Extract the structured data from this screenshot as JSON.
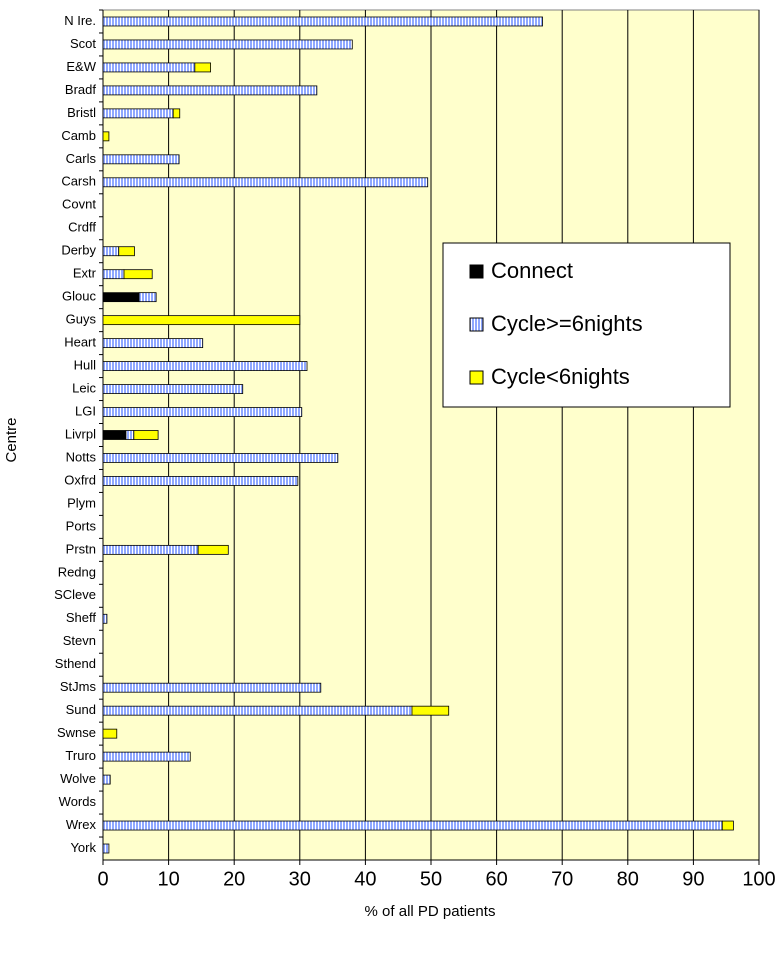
{
  "chart_data": {
    "type": "bar",
    "orientation": "horizontal",
    "stacked": true,
    "x_label": "% of  all PD patients",
    "y_label": "Centre",
    "categories": [
      "N Ire.",
      "Scot",
      "E&W",
      "Bradf",
      "Bristl",
      "Camb",
      "Carls",
      "Carsh",
      "Covnt",
      "Crdff",
      "Derby",
      "Extr",
      "Glouc",
      "Guys",
      "Heart",
      "Hull",
      "Leic",
      "LGI",
      "Livrpl",
      "Notts",
      "Oxfrd",
      "Plym",
      "Ports",
      "Prstn",
      "Redng",
      "SCleve",
      "Sheff",
      "Stevn",
      "Sthend",
      "StJms",
      "Sund",
      "Swnse",
      "Truro",
      "Wolve",
      "Words",
      "Wrex",
      "York"
    ],
    "series": [
      {
        "name": "Connect",
        "color": "#000000",
        "values": [
          0,
          0,
          0,
          0,
          0,
          0,
          0,
          0,
          0,
          0,
          0,
          0,
          5.5,
          0,
          0,
          0,
          0,
          0,
          3.5,
          0,
          0,
          0,
          0,
          0,
          0,
          0,
          0,
          0,
          0,
          0,
          0,
          0,
          0,
          0,
          0,
          0,
          0
        ]
      },
      {
        "name": "Cycle>=6nights",
        "color": "#8fa8ff",
        "values": [
          67,
          38,
          14,
          32.6,
          10.7,
          0,
          11.6,
          49.5,
          0,
          0,
          2.4,
          3.2,
          2.6,
          0,
          15.2,
          31.1,
          21.3,
          30.3,
          1.2,
          35.8,
          29.7,
          0,
          0,
          14.5,
          0,
          0,
          0.6,
          0,
          0,
          33.2,
          47.1,
          0,
          13.3,
          1.1,
          0,
          94.4,
          0.9
        ]
      },
      {
        "name": "Cycle<6nights",
        "color": "#ffff00",
        "values": [
          0,
          0,
          2.4,
          0,
          1,
          0.9,
          0,
          0,
          0,
          0,
          2.4,
          4.3,
          0,
          30,
          0,
          0,
          0,
          0,
          3.7,
          0,
          0,
          0,
          0,
          4.6,
          0,
          0,
          0,
          0,
          0,
          0,
          5.6,
          2.1,
          0,
          0,
          0,
          1.7,
          0
        ]
      }
    ],
    "xlim": [
      0,
      100
    ],
    "xticks": [
      0,
      10,
      20,
      30,
      40,
      50,
      60,
      70,
      80,
      90,
      100
    ],
    "grid": true,
    "legend": "right"
  }
}
